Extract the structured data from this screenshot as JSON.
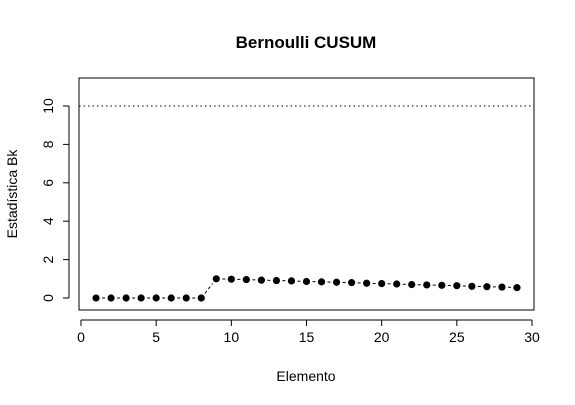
{
  "chart_data": {
    "type": "scatter",
    "title": "Bernoulli CUSUM",
    "xlabel": "Elemento",
    "ylabel": "Estadística Bk",
    "xlim": [
      0,
      30
    ],
    "ylim": [
      -0.5,
      11.5
    ],
    "x_ticks": [
      0,
      5,
      10,
      15,
      20,
      25,
      30
    ],
    "y_ticks": [
      0,
      2,
      4,
      6,
      8,
      10
    ],
    "threshold": {
      "value": 10,
      "style": "dotted"
    },
    "connector": "dashed",
    "grid": false,
    "x": [
      1,
      2,
      3,
      4,
      5,
      6,
      7,
      8,
      9,
      10,
      11,
      12,
      13,
      14,
      15,
      16,
      17,
      18,
      19,
      20,
      21,
      22,
      23,
      24,
      25,
      26,
      27,
      28,
      29
    ],
    "values": [
      0,
      0,
      0,
      0,
      0,
      0,
      0,
      0,
      1.0,
      0.98,
      0.96,
      0.93,
      0.91,
      0.89,
      0.86,
      0.84,
      0.82,
      0.8,
      0.77,
      0.75,
      0.73,
      0.7,
      0.68,
      0.66,
      0.64,
      0.61,
      0.59,
      0.57,
      0.54
    ],
    "colors": {
      "points": "#000000",
      "frame": "#000000"
    }
  }
}
